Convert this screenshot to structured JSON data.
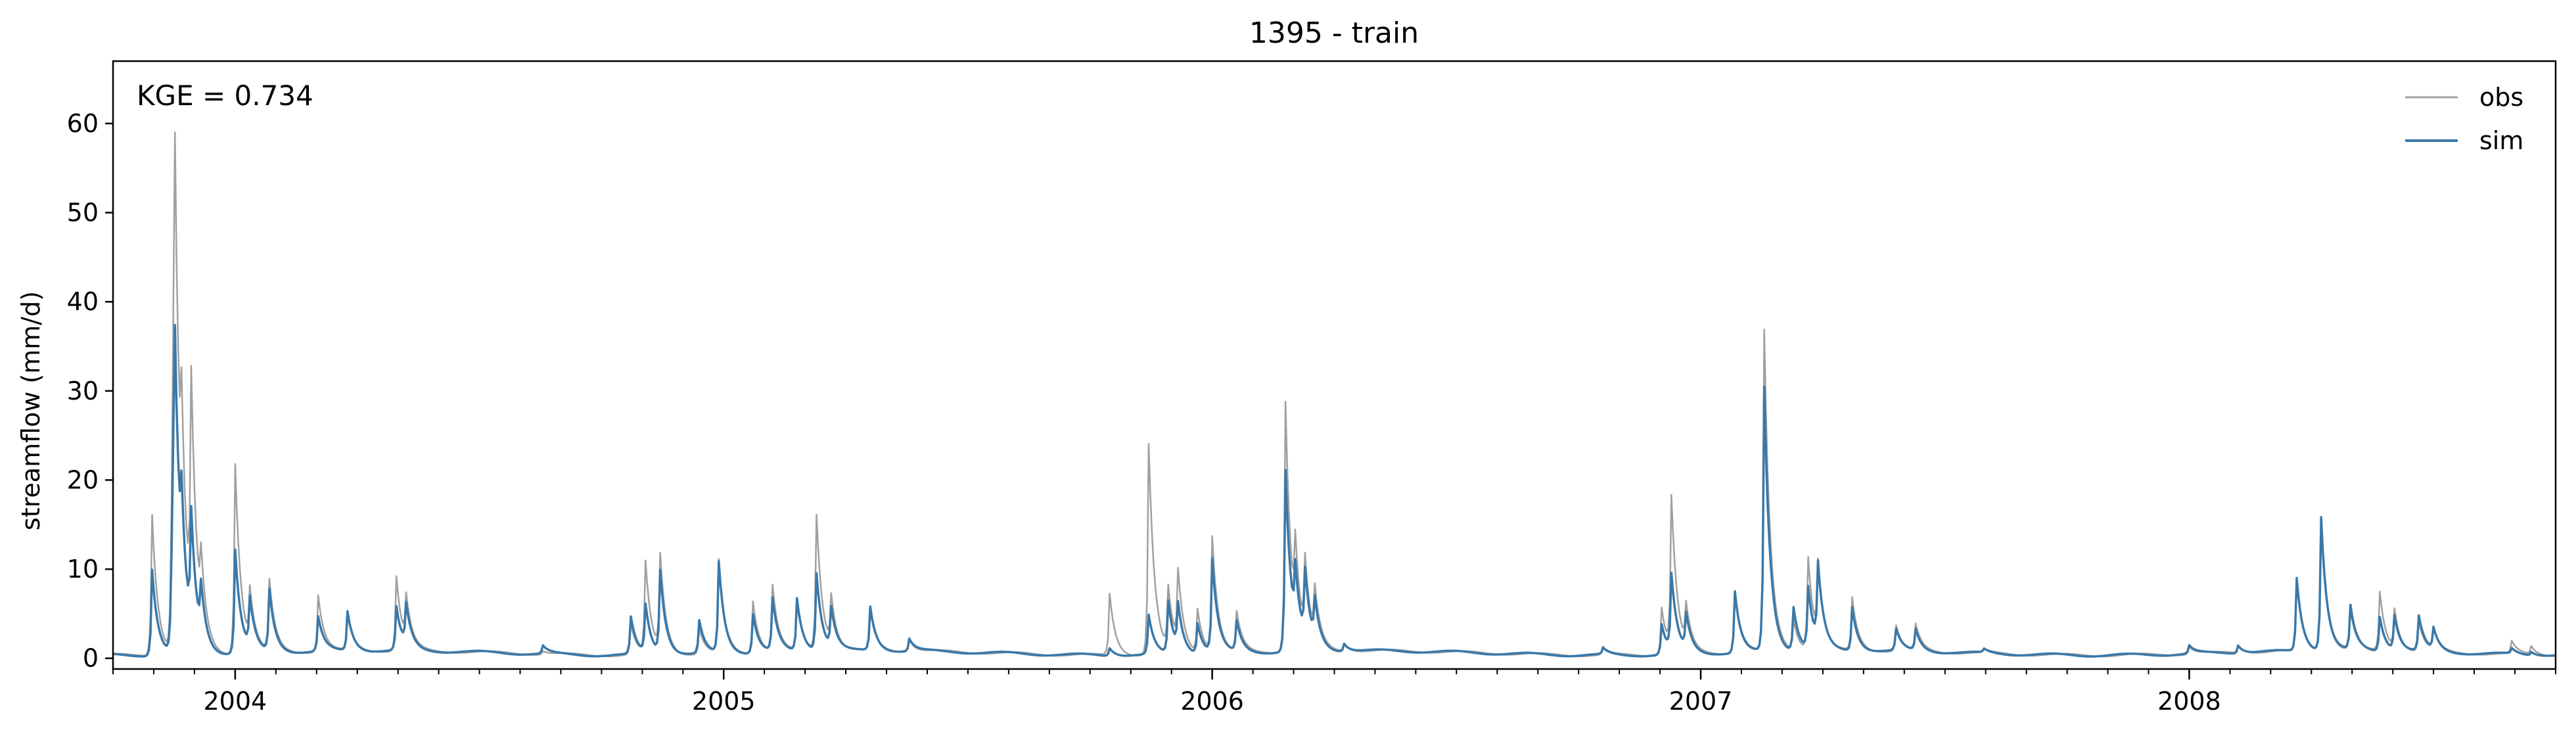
{
  "chart_data": {
    "type": "line",
    "title": "1395 - train",
    "xlabel": "",
    "ylabel": "streamflow (mm/d)",
    "annotation": "KGE = 0.734",
    "legend_position": "top-right",
    "grid": false,
    "xlim": [
      2003.75,
      2008.75
    ],
    "ylim": [
      -1.2,
      67
    ],
    "x_ticks": [
      {
        "value": 2004,
        "label": "2004"
      },
      {
        "value": 2005,
        "label": "2005"
      },
      {
        "value": 2006,
        "label": "2006"
      },
      {
        "value": 2007,
        "label": "2007"
      },
      {
        "value": 2008,
        "label": "2008"
      }
    ],
    "y_ticks": [
      {
        "value": 0,
        "label": "0"
      },
      {
        "value": 10,
        "label": "10"
      },
      {
        "value": 20,
        "label": "20"
      },
      {
        "value": 30,
        "label": "30"
      },
      {
        "value": 40,
        "label": "40"
      },
      {
        "value": 50,
        "label": "50"
      },
      {
        "value": 60,
        "label": "60"
      }
    ],
    "series": [
      {
        "name": "obs",
        "color": "#a0a0a0",
        "base": 0.6,
        "peaks": [
          [
            2003.83,
            16.5
          ],
          [
            2003.87,
            9.0
          ],
          [
            2003.875,
            62.0
          ],
          [
            2003.89,
            13.5
          ],
          [
            2003.91,
            26.8
          ],
          [
            2003.93,
            7.0
          ],
          [
            2004.0,
            22.0
          ],
          [
            2004.03,
            6.5
          ],
          [
            2004.07,
            8.5
          ],
          [
            2004.17,
            7.0
          ],
          [
            2004.23,
            4.5
          ],
          [
            2004.33,
            9.0
          ],
          [
            2004.35,
            5.5
          ],
          [
            2004.63,
            1.0
          ],
          [
            2004.81,
            4.0
          ],
          [
            2004.84,
            10.8
          ],
          [
            2004.87,
            11.2
          ],
          [
            2004.95,
            3.5
          ],
          [
            2004.99,
            11.0
          ],
          [
            2005.06,
            6.5
          ],
          [
            2005.1,
            8.0
          ],
          [
            2005.15,
            6.0
          ],
          [
            2005.19,
            15.8
          ],
          [
            2005.22,
            6.0
          ],
          [
            2005.3,
            5.0
          ],
          [
            2005.38,
            2.0
          ],
          [
            2005.79,
            7.5
          ],
          [
            2005.87,
            24.3
          ],
          [
            2005.91,
            7.5
          ],
          [
            2005.93,
            8.8
          ],
          [
            2005.97,
            5.5
          ],
          [
            2006.0,
            13.5
          ],
          [
            2006.05,
            5.0
          ],
          [
            2006.15,
            28.8
          ],
          [
            2006.17,
            9.0
          ],
          [
            2006.19,
            9.0
          ],
          [
            2006.21,
            6.0
          ],
          [
            2006.27,
            1.5
          ],
          [
            2006.8,
            1.5
          ],
          [
            2006.92,
            6.0
          ],
          [
            2006.94,
            17.5
          ],
          [
            2006.97,
            5.0
          ],
          [
            2007.07,
            7.5
          ],
          [
            2007.13,
            36.6
          ],
          [
            2007.19,
            4.0
          ],
          [
            2007.22,
            11.0
          ],
          [
            2007.24,
            9.0
          ],
          [
            2007.31,
            6.5
          ],
          [
            2007.4,
            3.5
          ],
          [
            2007.44,
            3.5
          ],
          [
            2007.58,
            1.0
          ],
          [
            2008.0,
            1.5
          ],
          [
            2008.1,
            1.5
          ],
          [
            2008.22,
            8.5
          ],
          [
            2008.27,
            15.3
          ],
          [
            2008.33,
            5.0
          ],
          [
            2008.39,
            7.2
          ],
          [
            2008.42,
            5.0
          ],
          [
            2008.47,
            4.0
          ],
          [
            2008.5,
            3.0
          ],
          [
            2008.66,
            2.0
          ],
          [
            2008.7,
            1.5
          ]
        ]
      },
      {
        "name": "sim",
        "color": "#3a78a8",
        "base": 0.6,
        "peaks": [
          [
            2003.83,
            10.3
          ],
          [
            2003.87,
            7.0
          ],
          [
            2003.875,
            38.5
          ],
          [
            2003.89,
            9.0
          ],
          [
            2003.91,
            13.3
          ],
          [
            2003.93,
            6.0
          ],
          [
            2004.0,
            12.3
          ],
          [
            2004.03,
            6.0
          ],
          [
            2004.07,
            7.5
          ],
          [
            2004.17,
            4.5
          ],
          [
            2004.23,
            5.0
          ],
          [
            2004.33,
            5.5
          ],
          [
            2004.35,
            5.0
          ],
          [
            2004.63,
            1.5
          ],
          [
            2004.81,
            4.8
          ],
          [
            2004.84,
            6.0
          ],
          [
            2004.87,
            9.8
          ],
          [
            2004.95,
            4.3
          ],
          [
            2004.99,
            10.8
          ],
          [
            2005.06,
            5.0
          ],
          [
            2005.1,
            6.5
          ],
          [
            2005.15,
            6.5
          ],
          [
            2005.19,
            9.3
          ],
          [
            2005.22,
            5.0
          ],
          [
            2005.3,
            5.5
          ],
          [
            2005.38,
            2.0
          ],
          [
            2005.79,
            1.5
          ],
          [
            2005.87,
            5.0
          ],
          [
            2005.91,
            6.5
          ],
          [
            2005.93,
            5.5
          ],
          [
            2005.97,
            4.0
          ],
          [
            2006.0,
            11.0
          ],
          [
            2006.05,
            4.0
          ],
          [
            2006.15,
            21.0
          ],
          [
            2006.17,
            7.0
          ],
          [
            2006.19,
            8.0
          ],
          [
            2006.21,
            5.0
          ],
          [
            2006.27,
            1.5
          ],
          [
            2006.8,
            1.3
          ],
          [
            2006.92,
            4.0
          ],
          [
            2006.94,
            9.0
          ],
          [
            2006.97,
            4.5
          ],
          [
            2007.07,
            7.5
          ],
          [
            2007.13,
            30.2
          ],
          [
            2007.19,
            5.5
          ],
          [
            2007.22,
            7.5
          ],
          [
            2007.24,
            9.3
          ],
          [
            2007.31,
            5.5
          ],
          [
            2007.4,
            3.0
          ],
          [
            2007.44,
            3.0
          ],
          [
            2007.58,
            1.0
          ],
          [
            2008.0,
            1.5
          ],
          [
            2008.1,
            1.5
          ],
          [
            2008.22,
            8.8
          ],
          [
            2008.27,
            15.6
          ],
          [
            2008.33,
            5.5
          ],
          [
            2008.39,
            4.5
          ],
          [
            2008.42,
            4.5
          ],
          [
            2008.47,
            4.5
          ],
          [
            2008.5,
            3.0
          ],
          [
            2008.66,
            1.2
          ],
          [
            2008.7,
            1.0
          ]
        ]
      }
    ]
  }
}
